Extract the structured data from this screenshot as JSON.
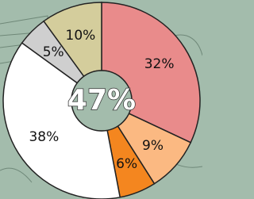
{
  "chart_data": {
    "type": "donut",
    "values": [
      32,
      9,
      6,
      38,
      5,
      10
    ],
    "value_labels": [
      "32%",
      "9%",
      "6%",
      "38%",
      "5%",
      "10%"
    ],
    "colors": [
      "#e98b8b",
      "#fbb982",
      "#f4861f",
      "#ffffff",
      "#cfcfcf",
      "#d4cd9c"
    ],
    "center_label": "47%"
  }
}
